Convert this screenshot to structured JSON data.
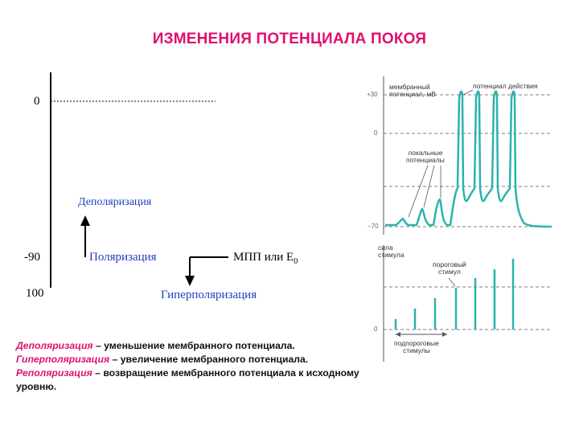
{
  "title": "ИЗМЕНЕНИЯ ПОТЕНЦИАЛА ПОКОЯ",
  "left_diagram": {
    "zero": "0",
    "minus90": "-90",
    "minus100": "100",
    "depolarization": "Деполяризация",
    "polarization": "Поляризация",
    "hyperpolarization": "Гиперполяризация",
    "mpp": "МПП или Е",
    "mpp_sub": "0"
  },
  "definitions": [
    {
      "term": "Деполяризация",
      "text": " – уменьшение мембранного потенциала."
    },
    {
      "term": "Гиперполяризация",
      "text": " – увеличение мембранного потенциала."
    },
    {
      "term": "Реполяризация",
      "text": " – возвращение мембранного потенциала к исходному уровню."
    }
  ],
  "right_top": {
    "ylabel_line1": "мембранный",
    "ylabel_line2": "потенциал, мВ",
    "action_label": "потенциал действия",
    "local_line1": "локальные",
    "local_line2": "потенциалы",
    "tick_p30": "+30",
    "tick_0": "0",
    "tick_m70": "−70"
  },
  "right_bottom": {
    "strength_line1": "сила",
    "strength_line2": "стимула",
    "threshold_line1": "пороговый",
    "threshold_line2": "стимул",
    "subthreshold_line1": "подпороговые",
    "subthreshold_line2": "стимулы",
    "tick_0": "0"
  },
  "colors": {
    "title": "#e0106e",
    "blue": "#1f3fbf",
    "teal": "#2bb3ad"
  }
}
